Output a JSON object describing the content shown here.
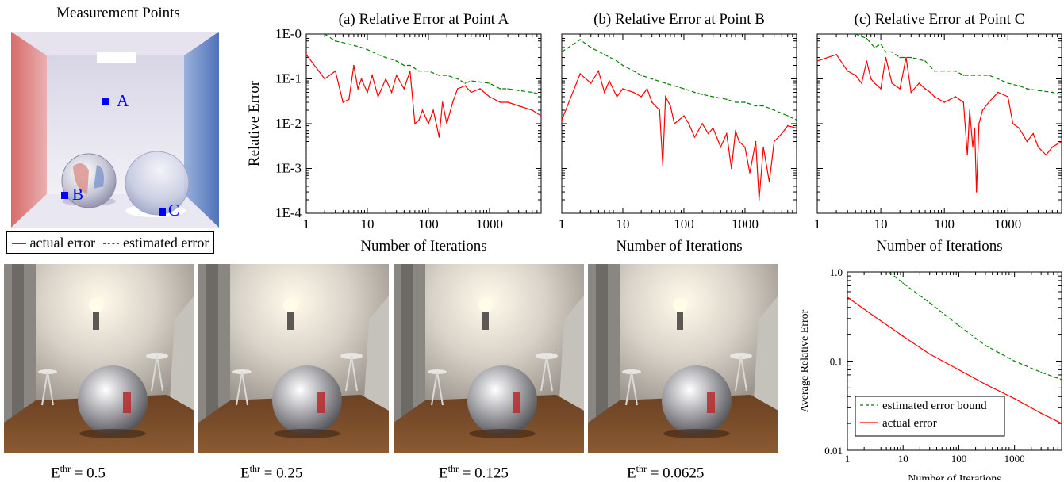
{
  "scene": {
    "title": "Measurement Points",
    "points": [
      {
        "label": "A",
        "color": "#0000ff"
      },
      {
        "label": "B",
        "color": "#0000ff"
      },
      {
        "label": "C",
        "color": "#0000ff"
      }
    ],
    "legend": {
      "actual": "actual error",
      "estimated": "estimated error"
    }
  },
  "colors": {
    "actual": "#ff0000",
    "estimated": "#008000",
    "marker": "#0000ff"
  },
  "renders": [
    {
      "label": "0.5"
    },
    {
      "label": "0.25"
    },
    {
      "label": "0.125"
    },
    {
      "label": "0.0625"
    }
  ],
  "caption_symbol": "E",
  "caption_sup": "thr",
  "chart_data": [
    {
      "type": "line",
      "title": "(a) Relative Error at Point A",
      "xlabel": "Number of Iterations",
      "ylabel": "Relative Error",
      "xscale": "log",
      "yscale": "log",
      "xlim": [
        1,
        7000
      ],
      "ylim": [
        0.0001,
        1
      ],
      "xticks": [
        "1",
        "10",
        "100",
        "1000"
      ],
      "yticks": [
        "1E-0",
        "1E-1",
        "1E-2",
        "1E-3",
        "1E-4"
      ],
      "series": [
        {
          "name": "actual error",
          "style": "solid",
          "color": "#ff0000",
          "x": [
            1,
            2,
            3,
            4,
            5,
            6,
            7,
            8,
            10,
            12,
            15,
            20,
            25,
            30,
            40,
            50,
            60,
            70,
            80,
            100,
            120,
            150,
            170,
            200,
            250,
            300,
            400,
            500,
            700,
            1000,
            1500,
            2000,
            3000,
            5000,
            7000
          ],
          "y": [
            0.35,
            0.1,
            0.15,
            0.03,
            0.035,
            0.2,
            0.06,
            0.1,
            0.05,
            0.12,
            0.04,
            0.1,
            0.05,
            0.12,
            0.06,
            0.15,
            0.01,
            0.012,
            0.02,
            0.01,
            0.02,
            0.005,
            0.03,
            0.01,
            0.03,
            0.06,
            0.07,
            0.05,
            0.06,
            0.04,
            0.03,
            0.03,
            0.025,
            0.02,
            0.015
          ]
        },
        {
          "name": "estimated error",
          "style": "dashed",
          "color": "#008000",
          "x": [
            2,
            3,
            5,
            8,
            10,
            15,
            20,
            30,
            40,
            50,
            70,
            100,
            150,
            200,
            300,
            400,
            500,
            700,
            1000,
            1500,
            2000,
            3000,
            5000,
            7000
          ],
          "y": [
            1.0,
            0.7,
            0.6,
            0.5,
            0.45,
            0.35,
            0.3,
            0.25,
            0.2,
            0.2,
            0.15,
            0.15,
            0.12,
            0.12,
            0.1,
            0.08,
            0.09,
            0.085,
            0.08,
            0.06,
            0.06,
            0.055,
            0.05,
            0.045
          ]
        }
      ]
    },
    {
      "type": "line",
      "title": "(b) Relative Error at Point B",
      "xlabel": "Number of Iterations",
      "xscale": "log",
      "yscale": "log",
      "xlim": [
        1,
        7000
      ],
      "ylim": [
        0.0001,
        1
      ],
      "xticks": [
        "1",
        "10",
        "100",
        "1000"
      ],
      "series": [
        {
          "name": "actual error",
          "style": "solid",
          "color": "#ff0000",
          "x": [
            1,
            2,
            3,
            4,
            5,
            6,
            8,
            10,
            15,
            20,
            25,
            30,
            40,
            45,
            50,
            60,
            70,
            100,
            120,
            150,
            200,
            250,
            300,
            400,
            500,
            600,
            700,
            800,
            1000,
            1200,
            1500,
            1700,
            2000,
            2500,
            3000,
            4000,
            5000,
            7000
          ],
          "y": [
            0.012,
            0.13,
            0.08,
            0.15,
            0.05,
            0.09,
            0.04,
            0.06,
            0.05,
            0.04,
            0.06,
            0.03,
            0.02,
            0.0012,
            0.04,
            0.025,
            0.01,
            0.015,
            0.01,
            0.005,
            0.01,
            0.006,
            0.008,
            0.003,
            0.006,
            0.001,
            0.007,
            0.004,
            0.003,
            0.0008,
            0.004,
            0.0002,
            0.003,
            0.0005,
            0.004,
            0.006,
            0.009,
            0.008
          ]
        },
        {
          "name": "estimated error",
          "style": "dashed",
          "color": "#008000",
          "x": [
            1,
            2,
            3,
            5,
            8,
            10,
            15,
            20,
            30,
            50,
            70,
            100,
            150,
            200,
            300,
            500,
            700,
            1000,
            1500,
            2000,
            3000,
            5000,
            7000
          ],
          "y": [
            0.4,
            0.75,
            0.5,
            0.35,
            0.25,
            0.2,
            0.15,
            0.12,
            0.1,
            0.08,
            0.07,
            0.06,
            0.05,
            0.045,
            0.04,
            0.035,
            0.03,
            0.03,
            0.025,
            0.025,
            0.02,
            0.015,
            0.012
          ]
        }
      ]
    },
    {
      "type": "line",
      "title": "(c) Relative Error at Point C",
      "xlabel": "Number of Iterations",
      "xscale": "log",
      "yscale": "log",
      "xlim": [
        1,
        7000
      ],
      "ylim": [
        0.0001,
        1
      ],
      "xticks": [
        "1",
        "10",
        "100",
        "1000"
      ],
      "series": [
        {
          "name": "actual error",
          "style": "solid",
          "color": "#ff0000",
          "x": [
            1,
            2,
            3,
            4,
            5,
            6,
            7,
            8,
            10,
            12,
            15,
            20,
            25,
            30,
            40,
            50,
            60,
            70,
            100,
            150,
            200,
            230,
            250,
            280,
            300,
            320,
            350,
            400,
            500,
            700,
            1000,
            1200,
            1500,
            2000,
            2500,
            3000,
            4000,
            5000,
            7000
          ],
          "y": [
            0.25,
            0.35,
            0.15,
            0.12,
            0.08,
            0.25,
            0.1,
            0.08,
            0.06,
            0.3,
            0.08,
            0.06,
            0.3,
            0.05,
            0.08,
            0.06,
            0.05,
            0.04,
            0.03,
            0.04,
            0.03,
            0.002,
            0.02,
            0.003,
            0.008,
            0.0003,
            0.01,
            0.02,
            0.03,
            0.05,
            0.04,
            0.01,
            0.008,
            0.004,
            0.006,
            0.003,
            0.002,
            0.003,
            0.004
          ]
        },
        {
          "name": "estimated error",
          "style": "dashed",
          "color": "#008000",
          "x": [
            4,
            6,
            8,
            10,
            12,
            15,
            20,
            30,
            50,
            70,
            100,
            150,
            200,
            300,
            500,
            700,
            1000,
            1500,
            2000,
            3000,
            5000,
            7000
          ],
          "y": [
            1.0,
            0.8,
            0.5,
            0.6,
            0.4,
            0.4,
            0.3,
            0.3,
            0.25,
            0.15,
            0.15,
            0.15,
            0.12,
            0.12,
            0.12,
            0.1,
            0.08,
            0.07,
            0.06,
            0.055,
            0.05,
            0.045
          ]
        }
      ]
    },
    {
      "type": "line",
      "xlabel": "Number of Iterations",
      "ylabel": "Average Relative Error",
      "xscale": "log",
      "yscale": "log",
      "xlim": [
        1,
        7000
      ],
      "ylim": [
        0.01,
        1
      ],
      "xticks": [
        "1",
        "10",
        "100",
        "1000"
      ],
      "yticks": [
        "1.0",
        "0.1",
        "0.01"
      ],
      "legend_position": "bottom-left",
      "series": [
        {
          "name": "estimated error bound",
          "style": "dashed",
          "color": "#008000",
          "x": [
            5.6,
            10,
            30,
            100,
            300,
            1000,
            3000,
            7000
          ],
          "y": [
            1.0,
            0.75,
            0.45,
            0.25,
            0.15,
            0.1,
            0.075,
            0.062
          ]
        },
        {
          "name": "actual error",
          "style": "solid",
          "color": "#ff0000",
          "x": [
            1,
            3,
            10,
            30,
            100,
            300,
            1000,
            3000,
            7000
          ],
          "y": [
            0.52,
            0.32,
            0.19,
            0.12,
            0.08,
            0.055,
            0.038,
            0.026,
            0.02
          ]
        }
      ]
    }
  ]
}
